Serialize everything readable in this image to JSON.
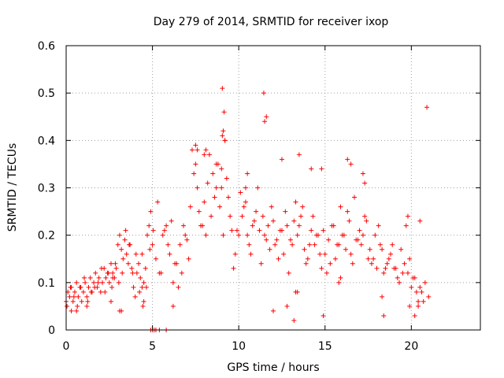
{
  "chart_data": {
    "type": "scatter",
    "title": "Day 279 of 2014, SRMTID for receiver ixop",
    "xlabel": "GPS time / hours",
    "ylabel": "SRMTID / TECUs",
    "xlim": [
      0,
      24
    ],
    "ylim": [
      0,
      0.6
    ],
    "xticks": [
      0,
      5,
      10,
      15,
      20
    ],
    "xtick_labels": [
      "0",
      "5",
      "10",
      "15",
      "20"
    ],
    "yticks": [
      0,
      0.1,
      0.2,
      0.3,
      0.4,
      0.5,
      0.6
    ],
    "ytick_labels": [
      "0",
      "0.1",
      "0.2",
      "0.3",
      "0.4",
      "0.5",
      "0.6"
    ],
    "grid": true,
    "marker": "+",
    "color": "#ff0000",
    "series": [
      {
        "name": "SRMTID",
        "x": [
          0.0,
          0.1,
          0.2,
          0.3,
          0.4,
          0.5,
          0.6,
          0.7,
          0.8,
          0.9,
          1.0,
          1.1,
          1.2,
          1.3,
          1.4,
          1.5,
          1.6,
          1.7,
          1.8,
          1.9,
          2.0,
          2.1,
          2.2,
          2.3,
          2.4,
          2.5,
          2.6,
          2.7,
          2.8,
          2.9,
          3.0,
          3.1,
          3.2,
          3.3,
          3.4,
          3.5,
          3.6,
          3.7,
          3.8,
          3.9,
          4.0,
          4.1,
          4.2,
          4.3,
          4.4,
          4.5,
          4.6,
          4.7,
          4.8,
          4.9,
          5.0,
          5.2,
          5.4,
          5.6,
          5.8,
          6.0,
          6.2,
          6.4,
          6.6,
          6.8,
          7.0,
          7.2,
          7.4,
          7.6,
          7.8,
          8.0,
          8.2,
          8.4,
          8.6,
          8.8,
          9.0,
          9.1,
          9.2,
          9.4,
          9.6,
          9.8,
          10.0,
          10.2,
          10.4,
          10.6,
          10.8,
          11.0,
          11.2,
          11.4,
          11.6,
          11.8,
          12.0,
          12.2,
          12.4,
          12.6,
          12.8,
          13.0,
          13.2,
          13.4,
          13.6,
          13.8,
          14.0,
          14.2,
          14.4,
          14.6,
          14.8,
          15.0,
          15.2,
          15.4,
          15.6,
          15.8,
          16.0,
          16.2,
          16.4,
          16.6,
          16.8,
          17.0,
          17.2,
          17.4,
          17.6,
          17.8,
          18.0,
          18.2,
          18.4,
          18.6,
          18.8,
          19.0,
          19.2,
          19.4,
          19.6,
          19.8,
          20.0,
          20.2,
          20.4,
          20.6,
          20.8,
          21.0,
          0.05,
          0.25,
          0.45,
          0.65,
          0.85,
          1.05,
          1.25,
          1.45,
          1.65,
          1.85,
          2.05,
          2.25,
          2.45,
          2.65,
          2.85,
          3.05,
          3.25,
          3.45,
          3.65,
          3.85,
          4.05,
          4.25,
          4.45,
          4.65,
          4.85,
          5.05,
          5.3,
          5.5,
          5.7,
          5.9,
          6.1,
          6.3,
          6.5,
          6.7,
          6.9,
          7.1,
          7.3,
          7.5,
          7.7,
          7.9,
          8.1,
          8.3,
          8.5,
          8.7,
          8.9,
          9.05,
          9.15,
          9.3,
          9.5,
          9.7,
          9.9,
          10.1,
          10.3,
          10.5,
          10.7,
          10.9,
          11.1,
          11.3,
          11.5,
          11.7,
          11.9,
          12.1,
          12.3,
          12.5,
          12.7,
          12.9,
          13.1,
          13.3,
          13.5,
          13.7,
          13.9,
          14.1,
          14.3,
          14.5,
          14.7,
          14.9,
          15.1,
          15.3,
          15.5,
          15.7,
          15.9,
          16.1,
          16.3,
          16.5,
          16.7,
          16.9,
          17.1,
          17.3,
          17.5,
          17.7,
          17.9,
          18.1,
          18.3,
          18.5,
          18.7,
          18.9,
          19.1,
          19.3,
          19.5,
          19.7,
          19.9,
          20.1,
          20.3,
          20.5,
          20.7,
          20.9,
          11.5,
          11.6,
          11.45,
          9.05,
          9.1,
          9.2,
          8.1,
          8.0,
          7.5,
          7.6,
          13.5,
          14.2,
          14.8,
          16.3,
          16.5,
          17.2,
          17.3,
          10.4,
          10.5,
          8.7,
          9.0,
          12.5,
          13.2,
          14.9,
          4.9,
          5.0,
          5.8,
          6.2,
          3.1,
          3.2,
          20.2,
          20.4,
          20.5,
          19.8,
          19.9,
          4.5,
          4.4,
          13.3,
          13.4,
          18.4,
          18.3,
          0.3,
          0.6,
          1.2,
          2.6,
          2.7,
          15.8,
          15.9,
          12.8,
          12.0,
          5.1,
          5.2,
          5.4
        ],
        "y": [
          0.06,
          0.08,
          0.07,
          0.09,
          0.06,
          0.08,
          0.1,
          0.07,
          0.09,
          0.06,
          0.08,
          0.1,
          0.07,
          0.09,
          0.11,
          0.08,
          0.1,
          0.12,
          0.09,
          0.11,
          0.08,
          0.1,
          0.13,
          0.11,
          0.12,
          0.1,
          0.14,
          0.12,
          0.11,
          0.13,
          0.18,
          0.2,
          0.17,
          0.15,
          0.19,
          0.16,
          0.14,
          0.18,
          0.13,
          0.09,
          0.07,
          0.12,
          0.14,
          0.11,
          0.16,
          0.1,
          0.13,
          0.2,
          0.22,
          0.25,
          0.18,
          0.15,
          0.12,
          0.2,
          0.22,
          0.16,
          0.1,
          0.14,
          0.18,
          0.22,
          0.19,
          0.26,
          0.33,
          0.3,
          0.22,
          0.27,
          0.31,
          0.24,
          0.28,
          0.35,
          0.3,
          0.2,
          0.4,
          0.28,
          0.21,
          0.16,
          0.2,
          0.24,
          0.27,
          0.18,
          0.22,
          0.25,
          0.21,
          0.24,
          0.19,
          0.17,
          0.23,
          0.19,
          0.21,
          0.16,
          0.22,
          0.19,
          0.23,
          0.2,
          0.24,
          0.17,
          0.15,
          0.21,
          0.18,
          0.2,
          0.13,
          0.16,
          0.19,
          0.22,
          0.15,
          0.18,
          0.2,
          0.17,
          0.23,
          0.14,
          0.19,
          0.21,
          0.2,
          0.23,
          0.17,
          0.15,
          0.13,
          0.18,
          0.12,
          0.14,
          0.16,
          0.13,
          0.11,
          0.17,
          0.14,
          0.12,
          0.09,
          0.11,
          0.06,
          0.08,
          0.1,
          0.07,
          0.05,
          0.09,
          0.07,
          0.05,
          0.09,
          0.11,
          0.06,
          0.08,
          0.09,
          0.1,
          0.13,
          0.08,
          0.12,
          0.09,
          0.14,
          0.1,
          0.12,
          0.21,
          0.18,
          0.12,
          0.16,
          0.08,
          0.05,
          0.09,
          0.17,
          0.21,
          0.27,
          0.12,
          0.21,
          0.18,
          0.23,
          0.14,
          0.09,
          0.12,
          0.2,
          0.15,
          0.38,
          0.39,
          0.25,
          0.22,
          0.2,
          0.37,
          0.33,
          0.35,
          0.26,
          0.41,
          0.46,
          0.32,
          0.24,
          0.13,
          0.21,
          0.29,
          0.26,
          0.2,
          0.16,
          0.23,
          0.3,
          0.14,
          0.2,
          0.22,
          0.26,
          0.18,
          0.15,
          0.21,
          0.25,
          0.12,
          0.18,
          0.27,
          0.22,
          0.26,
          0.14,
          0.18,
          0.24,
          0.2,
          0.16,
          0.21,
          0.12,
          0.14,
          0.22,
          0.18,
          0.26,
          0.2,
          0.25,
          0.16,
          0.28,
          0.19,
          0.18,
          0.24,
          0.15,
          0.14,
          0.2,
          0.22,
          0.17,
          0.13,
          0.15,
          0.18,
          0.13,
          0.1,
          0.12,
          0.22,
          0.15,
          0.11,
          0.08,
          0.09,
          0.06,
          0.47,
          0.44,
          0.45,
          0.5,
          0.51,
          0.42,
          0.4,
          0.38,
          0.37,
          0.35,
          0.38,
          0.37,
          0.34,
          0.34,
          0.36,
          0.35,
          0.33,
          0.31,
          0.3,
          0.33,
          0.3,
          0.34,
          0.36,
          0.02,
          0.03,
          0.0,
          0.0,
          0.0,
          0.05,
          0.04,
          0.04,
          0.03,
          0.05,
          0.23,
          0.24,
          0.05,
          0.06,
          0.09,
          0.08,
          0.08,
          0.03,
          0.07,
          0.04,
          0.04,
          0.05,
          0.06,
          0.11,
          0.1,
          0.11,
          0.05,
          0.04,
          0.0,
          0.0,
          0.0
        ]
      }
    ]
  }
}
